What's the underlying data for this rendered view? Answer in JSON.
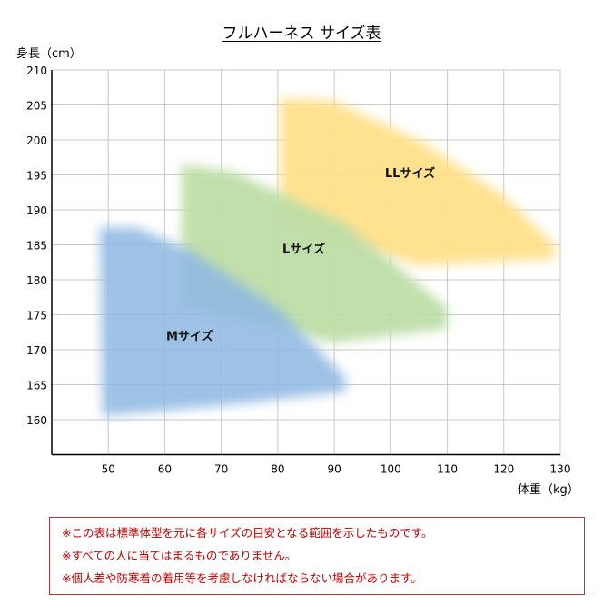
{
  "chart_data": {
    "type": "area",
    "title": "フルハーネス サイズ表",
    "ylabel": "身長（cm）",
    "xlabel": "体重（kg）",
    "xlim": [
      40,
      130
    ],
    "ylim": [
      155,
      210
    ],
    "xticks": [
      50,
      60,
      70,
      80,
      90,
      100,
      110,
      120,
      130
    ],
    "yticks": [
      160,
      165,
      170,
      175,
      180,
      185,
      190,
      195,
      200,
      205,
      210
    ],
    "grid": true,
    "series": [
      {
        "name": "LLサイズ",
        "color": "#ffe08a",
        "polygon": [
          [
            80.5,
            206
          ],
          [
            90,
            205.5
          ],
          [
            105,
            200
          ],
          [
            120,
            192
          ],
          [
            129,
            185
          ],
          [
            129,
            183
          ],
          [
            105,
            182
          ],
          [
            80.5,
            188
          ]
        ],
        "label_at": [
          103.4,
          195.3
        ]
      },
      {
        "name": "Lサイズ",
        "color": "#bedda6",
        "polygon": [
          [
            63,
            196.5
          ],
          [
            72,
            195.5
          ],
          [
            92,
            188
          ],
          [
            110,
            176
          ],
          [
            110,
            173
          ],
          [
            90,
            171
          ],
          [
            63,
            176
          ]
        ],
        "label_at": [
          84.6,
          184.5
        ]
      },
      {
        "name": "Mサイズ",
        "color": "#8fb9e3",
        "polygon": [
          [
            48.5,
            187.5
          ],
          [
            55,
            187.5
          ],
          [
            65,
            184
          ],
          [
            80,
            176
          ],
          [
            92,
            166
          ],
          [
            92,
            164
          ],
          [
            70,
            162
          ],
          [
            49,
            160.5
          ]
        ],
        "label_at": [
          64.4,
          172
        ]
      }
    ]
  },
  "notes": [
    "※この表は標準体型を元に各サイズの目安となる範囲を示したものです。",
    "※すべての人に当てはまるものでありません。",
    "※個人差や防寒着の着用等を考慮しなければならない場合があります。"
  ]
}
